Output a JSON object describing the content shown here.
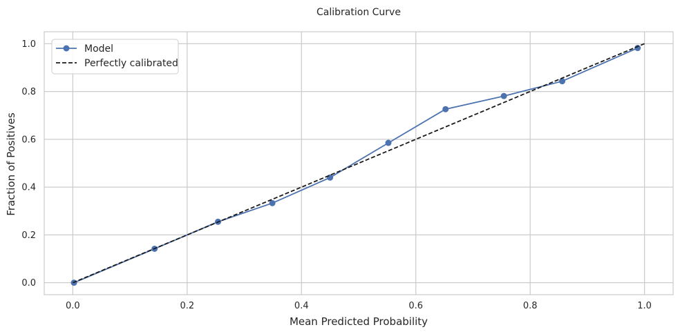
{
  "chart_data": {
    "type": "line",
    "title": "Calibration Curve",
    "xlabel": "Mean Predicted Probability",
    "ylabel": "Fraction of Positives",
    "xlim": [
      -0.05,
      1.05
    ],
    "ylim": [
      -0.05,
      1.05
    ],
    "xticks": [
      "0.0",
      "0.2",
      "0.4",
      "0.6",
      "0.8",
      "1.0"
    ],
    "yticks": [
      "0.0",
      "0.2",
      "0.4",
      "0.6",
      "0.8",
      "1.0"
    ],
    "grid": true,
    "legend_position": "upper-left",
    "series": [
      {
        "name": "Model",
        "style": "solid-line-circle-markers",
        "color": "#4c72b0",
        "x": [
          0.002,
          0.143,
          0.254,
          0.349,
          0.45,
          0.552,
          0.652,
          0.754,
          0.856,
          0.988
        ],
        "y": [
          0.0,
          0.142,
          0.255,
          0.333,
          0.44,
          0.585,
          0.726,
          0.781,
          0.843,
          0.982
        ]
      },
      {
        "name": "Perfectly calibrated",
        "style": "dashed-line",
        "color": "#1a1a1a",
        "x": [
          0,
          1
        ],
        "y": [
          0,
          1
        ]
      }
    ]
  }
}
